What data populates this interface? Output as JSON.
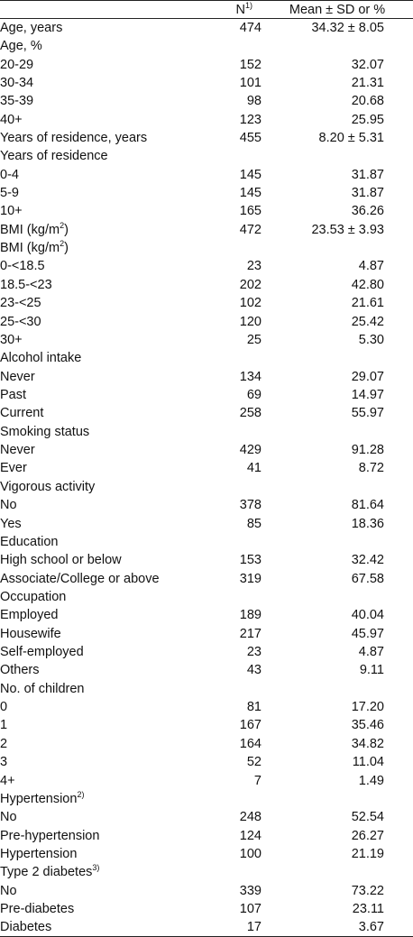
{
  "header": {
    "col_label": "",
    "col_n": "N",
    "col_n_note": "1)",
    "col_m": "Mean ± SD or %"
  },
  "rows": [
    {
      "label": "Age, years",
      "n": "474",
      "m": "34.32 ± 8.05",
      "level": 0
    },
    {
      "label": "Age, %",
      "n": "",
      "m": "",
      "level": 0
    },
    {
      "label": "20-29",
      "n": "152",
      "m": "32.07",
      "level": 1
    },
    {
      "label": "30-34",
      "n": "101",
      "m": "21.31",
      "level": 1
    },
    {
      "label": "35-39",
      "n": "98",
      "m": "20.68",
      "level": 1
    },
    {
      "label": "40+",
      "n": "123",
      "m": "25.95",
      "level": 1
    },
    {
      "label": "Years of residence, years",
      "n": "455",
      "m": "8.20 ± 5.31",
      "level": 0
    },
    {
      "label": "Years of residence",
      "n": "",
      "m": "",
      "level": 0
    },
    {
      "label": "0-4",
      "n": "145",
      "m": "31.87",
      "level": 1
    },
    {
      "label": "5-9",
      "n": "145",
      "m": "31.87",
      "level": 1
    },
    {
      "label": "10+",
      "n": "165",
      "m": "36.26",
      "level": 1
    },
    {
      "label": "BMI (kg/m",
      "sup": "2",
      "tail": ")",
      "n": "472",
      "m": "23.53 ± 3.93",
      "level": 0
    },
    {
      "label": "BMI (kg/m",
      "sup": "2",
      "tail": ")",
      "n": "",
      "m": "",
      "level": 0
    },
    {
      "label": "0-<18.5",
      "n": "23",
      "m": "4.87",
      "level": 1
    },
    {
      "label": "18.5-<23",
      "n": "202",
      "m": "42.80",
      "level": 1
    },
    {
      "label": "23-<25",
      "n": "102",
      "m": "21.61",
      "level": 1
    },
    {
      "label": "25-<30",
      "n": "120",
      "m": "25.42",
      "level": 1
    },
    {
      "label": "30+",
      "n": "25",
      "m": "5.30",
      "level": 1
    },
    {
      "label": "Alcohol intake",
      "n": "",
      "m": "",
      "level": 0
    },
    {
      "label": "Never",
      "n": "134",
      "m": "29.07",
      "level": 1
    },
    {
      "label": "Past",
      "n": "69",
      "m": "14.97",
      "level": 1
    },
    {
      "label": "Current",
      "n": "258",
      "m": "55.97",
      "level": 1
    },
    {
      "label": "Smoking status",
      "n": "",
      "m": "",
      "level": 0
    },
    {
      "label": "Never",
      "n": "429",
      "m": "91.28",
      "level": 1
    },
    {
      "label": "Ever",
      "n": "41",
      "m": "8.72",
      "level": 1
    },
    {
      "label": "Vigorous activity",
      "n": "",
      "m": "",
      "level": 0
    },
    {
      "label": "No",
      "n": "378",
      "m": "81.64",
      "level": 1
    },
    {
      "label": "Yes",
      "n": "85",
      "m": "18.36",
      "level": 1
    },
    {
      "label": "Education",
      "n": "",
      "m": "",
      "level": 0
    },
    {
      "label": "High school or below",
      "n": "153",
      "m": "32.42",
      "level": 1
    },
    {
      "label": "Associate/College or above",
      "n": "319",
      "m": "67.58",
      "level": 1
    },
    {
      "label": "Occupation",
      "n": "",
      "m": "",
      "level": 0
    },
    {
      "label": "Employed",
      "n": "189",
      "m": "40.04",
      "level": 1
    },
    {
      "label": "Housewife",
      "n": "217",
      "m": "45.97",
      "level": 1
    },
    {
      "label": "Self-employed",
      "n": "23",
      "m": "4.87",
      "level": 1
    },
    {
      "label": "Others",
      "n": "43",
      "m": "9.11",
      "level": 1
    },
    {
      "label": "No. of children",
      "n": "",
      "m": "",
      "level": 0
    },
    {
      "label": "0",
      "n": "81",
      "m": "17.20",
      "level": 1
    },
    {
      "label": "1",
      "n": "167",
      "m": "35.46",
      "level": 1
    },
    {
      "label": "2",
      "n": "164",
      "m": "34.82",
      "level": 1
    },
    {
      "label": "3",
      "n": "52",
      "m": "11.04",
      "level": 1
    },
    {
      "label": "4+",
      "n": "7",
      "m": "1.49",
      "level": 1
    },
    {
      "label": "Hypertension",
      "sup": "2)",
      "n": "",
      "m": "",
      "level": 0
    },
    {
      "label": "No",
      "n": "248",
      "m": "52.54",
      "level": 1
    },
    {
      "label": "Pre-hypertension",
      "n": "124",
      "m": "26.27",
      "level": 1
    },
    {
      "label": "Hypertension",
      "n": "100",
      "m": "21.19",
      "level": 1
    },
    {
      "label": "Type 2 diabetes",
      "sup": "3)",
      "n": "",
      "m": "",
      "level": 0
    },
    {
      "label": "No",
      "n": "339",
      "m": "73.22",
      "level": 1
    },
    {
      "label": "Pre-diabetes",
      "n": "107",
      "m": "23.11",
      "level": 1
    },
    {
      "label": "Diabetes",
      "n": "17",
      "m": "3.67",
      "level": 1
    }
  ]
}
